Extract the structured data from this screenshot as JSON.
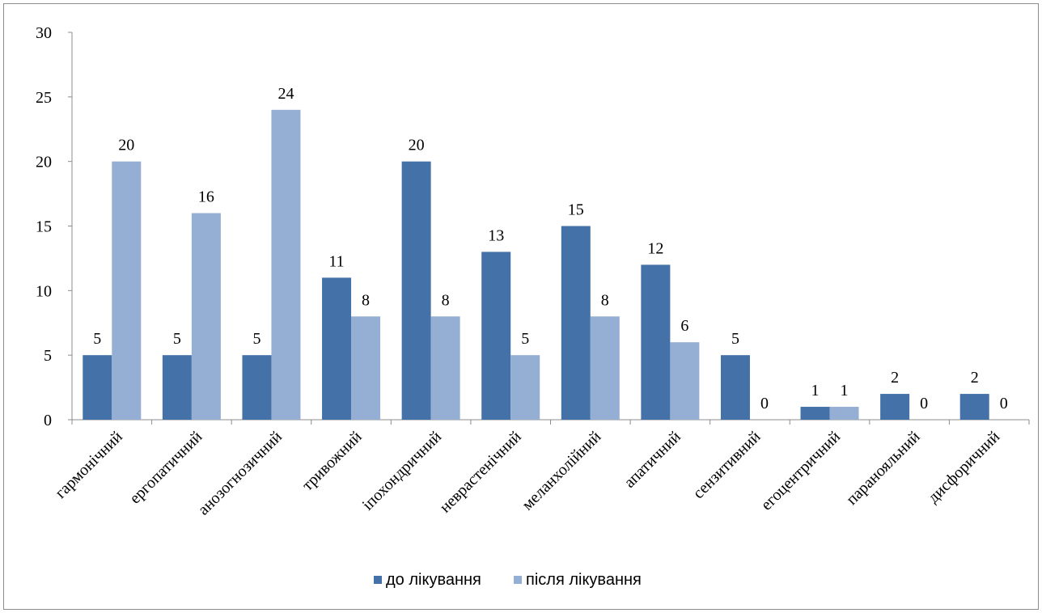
{
  "chart_data": {
    "type": "bar",
    "title": "",
    "xlabel": "",
    "ylabel": "",
    "ylim": [
      0,
      30
    ],
    "yticks": [
      0,
      5,
      10,
      15,
      20,
      25,
      30
    ],
    "grid": false,
    "legend_position": "bottom",
    "categories": [
      "гармонічний",
      "ергопатичний",
      "анозогнозичний",
      "тривожний",
      "іпохондричний",
      "неврастенічний",
      "меланхолійний",
      "апатичний",
      "сензитивний",
      "егоцентричний",
      "паранояльний",
      "дисфоричний"
    ],
    "series": [
      {
        "name": "до лікування",
        "color": "#4472a8",
        "values": [
          5,
          5,
          5,
          11,
          20,
          13,
          15,
          12,
          5,
          1,
          2,
          2
        ]
      },
      {
        "name": "після лікування",
        "color": "#95aed4",
        "values": [
          20,
          16,
          24,
          8,
          8,
          5,
          8,
          6,
          0,
          1,
          0,
          0
        ]
      }
    ]
  }
}
